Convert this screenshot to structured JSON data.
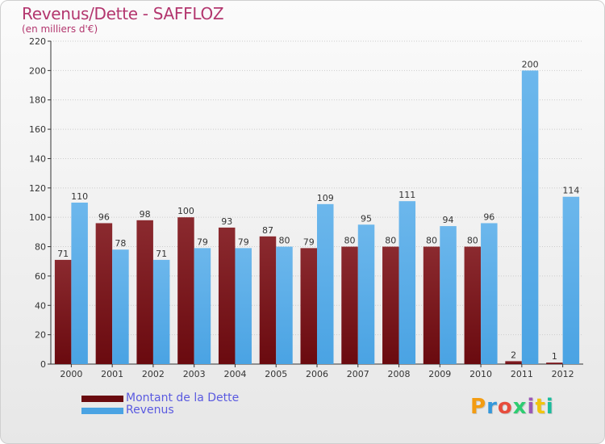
{
  "header": {
    "title": "Revenus/Dette - SAFFLOZ",
    "subtitle": "(en milliers d'€)"
  },
  "legend": {
    "items": [
      {
        "label": "Montant de la Dette",
        "color": "#6a0a0f"
      },
      {
        "label": "Revenus",
        "color": "#4aa3e3"
      }
    ]
  },
  "logo": {
    "text": "Proxiti"
  },
  "colors": {
    "dette": "#6a0a0f",
    "dette_light": "#8b2a2f",
    "revenus": "#4aa3e3",
    "revenus_light": "#6cb7ec",
    "axis": "#333333",
    "grid": "#cccccc",
    "title": "#b3366e",
    "legend_text": "#5a5ae0"
  },
  "chart_data": {
    "type": "bar",
    "title": "Revenus/Dette - SAFFLOZ",
    "subtitle": "(en milliers d'€)",
    "categories": [
      "2000",
      "2001",
      "2002",
      "2003",
      "2004",
      "2005",
      "2006",
      "2007",
      "2008",
      "2009",
      "2010",
      "2011",
      "2012"
    ],
    "series": [
      {
        "name": "Montant de la Dette",
        "values": [
          71,
          96,
          98,
          100,
          93,
          87,
          79,
          80,
          80,
          80,
          80,
          2,
          1
        ]
      },
      {
        "name": "Revenus",
        "values": [
          110,
          78,
          71,
          79,
          79,
          80,
          109,
          95,
          111,
          94,
          96,
          200,
          114
        ]
      }
    ],
    "ylim": [
      0,
      220
    ],
    "yticks": [
      0,
      20,
      40,
      60,
      80,
      100,
      120,
      140,
      160,
      180,
      200,
      220
    ],
    "grid": true,
    "legend_position": "bottom-left"
  }
}
